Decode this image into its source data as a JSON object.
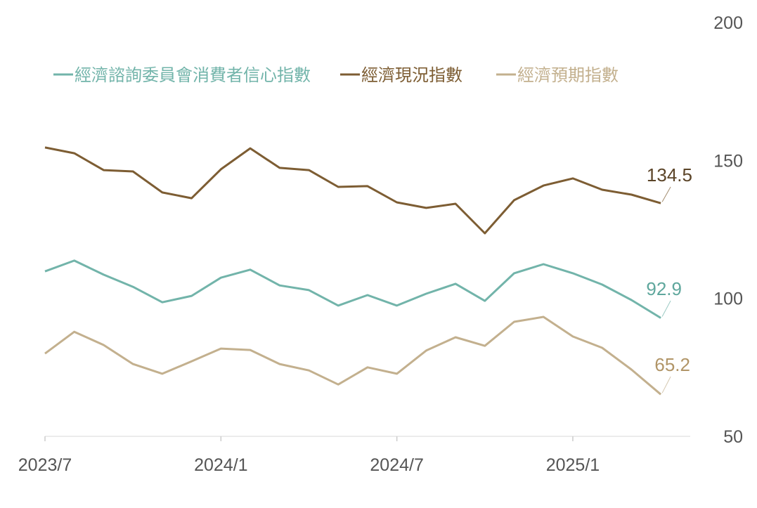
{
  "chart_data": {
    "type": "line",
    "title": "",
    "xlabel": "",
    "ylabel": "",
    "x": [
      "2023/7",
      "2023/8",
      "2023/9",
      "2023/10",
      "2023/11",
      "2023/12",
      "2024/1",
      "2024/2",
      "2024/3",
      "2024/4",
      "2024/5",
      "2024/6",
      "2024/7",
      "2024/8",
      "2024/9",
      "2024/10",
      "2024/11",
      "2024/12",
      "2025/1",
      "2025/2",
      "2025/3",
      "2025/4"
    ],
    "x_ticks": [
      "2023/7",
      "2024/1",
      "2024/7",
      "2025/1"
    ],
    "y_ticks": [
      "200",
      "150",
      "100",
      "50"
    ],
    "ylim": [
      50,
      200
    ],
    "y_axis_side": "right",
    "grid": false,
    "legend_placement": "top",
    "series": [
      {
        "name": "經濟諮詢委員會消費者信心指數",
        "color": "#72b4aa",
        "label_color": "#5fa79d",
        "end_label": "92.9",
        "values": [
          109.8,
          113.7,
          108.6,
          104.2,
          98.6,
          100.9,
          107.5,
          110.4,
          104.7,
          103.0,
          97.4,
          101.2,
          97.4,
          101.7,
          105.3,
          99.1,
          109.1,
          112.4,
          109.1,
          105.0,
          99.4,
          92.9
        ]
      },
      {
        "name": "經濟現況指數",
        "color": "#7d5d33",
        "label_color": "#5b4428",
        "end_label": "134.5",
        "values": [
          154.7,
          152.6,
          146.5,
          146.0,
          138.4,
          136.3,
          146.8,
          154.4,
          147.3,
          146.5,
          140.4,
          140.7,
          134.8,
          132.8,
          134.3,
          123.6,
          135.6,
          140.9,
          143.5,
          139.4,
          137.6,
          134.5
        ]
      },
      {
        "name": "經濟預期指數",
        "color": "#c3b08e",
        "label_color": "#b19567",
        "end_label": "65.2",
        "values": [
          80.0,
          87.9,
          83.1,
          76.2,
          72.7,
          77.2,
          81.8,
          81.3,
          76.2,
          73.9,
          68.8,
          75.0,
          72.7,
          81.1,
          85.9,
          82.8,
          91.5,
          93.3,
          86.2,
          82.1,
          74.2,
          65.2
        ]
      }
    ]
  }
}
